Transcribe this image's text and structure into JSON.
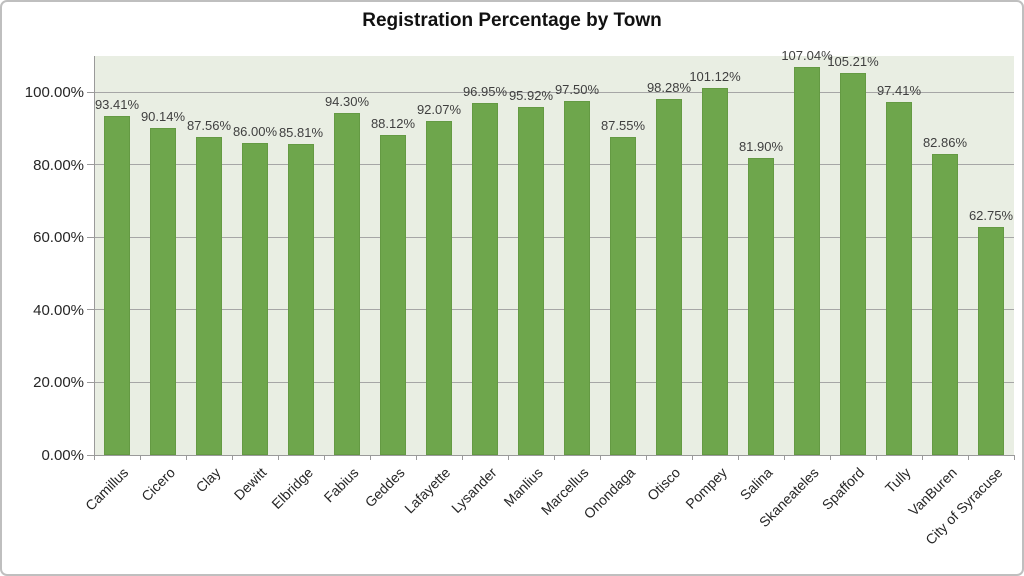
{
  "chart_data": {
    "type": "bar",
    "title": "Registration Percentage by Town",
    "categories": [
      "Camillus",
      "Cicero",
      "Clay",
      "Dewitt",
      "Elbridge",
      "Fabius",
      "Geddes",
      "Lafayette",
      "Lysander",
      "Manlius",
      "Marcellus",
      "Onondaga",
      "Otisco",
      "Pompey",
      "Salina",
      "Skaneateles",
      "Spafford",
      "Tully",
      "VanBuren",
      "City of Syracuse"
    ],
    "values": [
      93.41,
      90.14,
      87.56,
      86.0,
      85.81,
      94.3,
      88.12,
      92.07,
      96.95,
      95.92,
      97.5,
      87.55,
      98.28,
      101.12,
      81.9,
      107.04,
      105.21,
      97.41,
      82.86,
      62.75
    ],
    "value_labels": [
      "93.41%",
      "90.14%",
      "87.56%",
      "86.00%",
      "85.81%",
      "94.30%",
      "88.12%",
      "92.07%",
      "96.95%",
      "95.92%",
      "97.50%",
      "87.55%",
      "98.28%",
      "101.12%",
      "81.90%",
      "107.04%",
      "105.21%",
      "97.41%",
      "82.86%",
      "62.75%"
    ],
    "xlabel": "",
    "ylabel": "",
    "ylim": [
      0,
      110
    ],
    "ytick_interval": 20,
    "yticks": [
      0,
      20,
      40,
      60,
      80,
      100
    ],
    "ytick_labels": [
      "0.00%",
      "20.00%",
      "40.00%",
      "60.00%",
      "80.00%",
      "100.00%"
    ],
    "grid": true,
    "legend": "none",
    "colors": {
      "bar_fill": "#6ea64c",
      "bar_edge": "#649a43",
      "plot_bg": "#e9eee3",
      "gridline": "#a6a6a6",
      "axis_line": "#9a9a9a",
      "title_text": "#111111",
      "axis_text": "#262626",
      "value_label_text": "#3f3f3f",
      "frame_border": "#bfbfbf",
      "background": "#ffffff"
    }
  }
}
